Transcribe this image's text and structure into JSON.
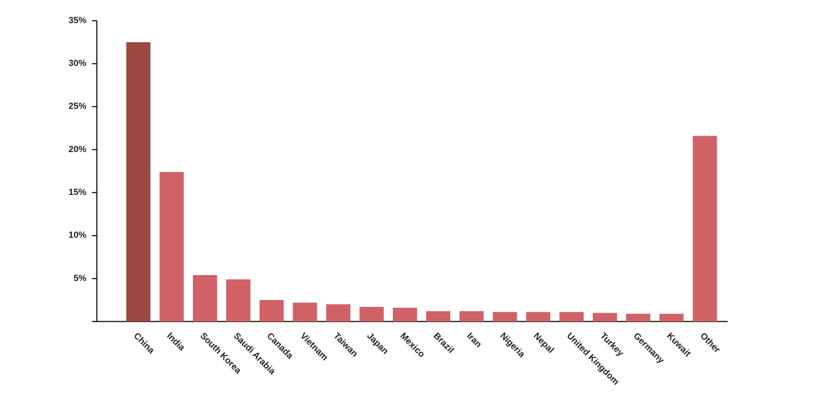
{
  "chart_data": {
    "type": "bar",
    "categories": [
      "China",
      "India",
      "South Korea",
      "Saudi Arabia",
      "Canada",
      "Vietnam",
      "Taiwan",
      "Japan",
      "Mexico",
      "Brazil",
      "Iran",
      "Nigeria",
      "Nepal",
      "United Kingdom",
      "Turkey",
      "Germany",
      "Kuwait",
      "Other"
    ],
    "values": [
      32.5,
      17.4,
      5.4,
      4.9,
      2.5,
      2.2,
      2.0,
      1.7,
      1.6,
      1.2,
      1.2,
      1.1,
      1.1,
      1.1,
      1.0,
      0.9,
      0.9,
      21.6
    ],
    "colors": [
      "#9b4742",
      "#d06166",
      "#d06166",
      "#d06166",
      "#d06166",
      "#d06166",
      "#d06166",
      "#d06166",
      "#d06166",
      "#d06166",
      "#d06166",
      "#d06166",
      "#d06166",
      "#d06166",
      "#d06166",
      "#d06166",
      "#d06166",
      "#d06166"
    ],
    "ylim": [
      0,
      35
    ],
    "yticks": [
      {
        "value": 5,
        "label": "5%"
      },
      {
        "value": 10,
        "label": "10%"
      },
      {
        "value": 15,
        "label": "15%"
      },
      {
        "value": 20,
        "label": "20%"
      },
      {
        "value": 25,
        "label": "25%"
      },
      {
        "value": 30,
        "label": "30%"
      },
      {
        "value": 35,
        "label": "35%"
      }
    ],
    "grid": false
  }
}
